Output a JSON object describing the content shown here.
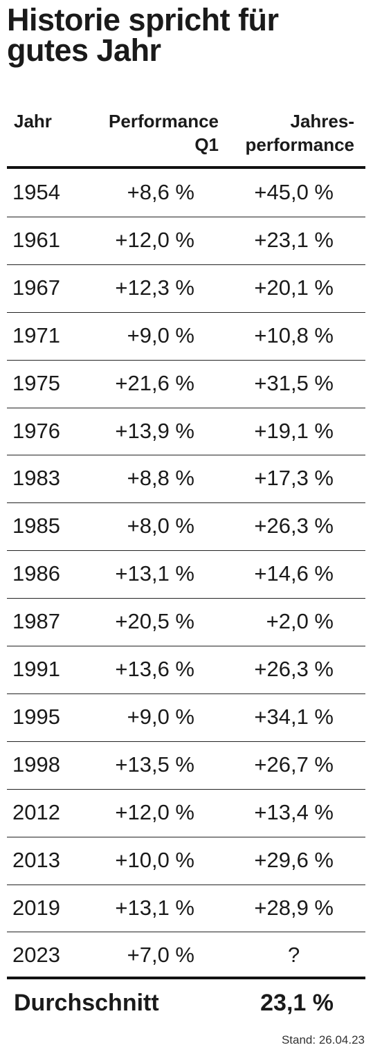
{
  "title": [
    "Historie spricht für",
    "gutes Jahr"
  ],
  "table": {
    "header": [
      [
        "Jahr"
      ],
      [
        "Performance",
        "Q1"
      ],
      [
        "Jahres-",
        "performance"
      ]
    ],
    "rows": [
      [
        "1954",
        "+8,6 %",
        "+45,0 %"
      ],
      [
        "1961",
        "+12,0 %",
        "+23,1 %"
      ],
      [
        "1967",
        "+12,3 %",
        "+20,1 %"
      ],
      [
        "1971",
        "+9,0 %",
        "+10,8 %"
      ],
      [
        "1975",
        "+21,6 %",
        "+31,5 %"
      ],
      [
        "1976",
        "+13,9 %",
        "+19,1 %"
      ],
      [
        "1983",
        "+8,8 %",
        "+17,3 %"
      ],
      [
        "1985",
        "+8,0 %",
        "+26,3 %"
      ],
      [
        "1986",
        "+13,1 %",
        "+14,6 %"
      ],
      [
        "1987",
        "+20,5 %",
        "+2,0 %"
      ],
      [
        "1991",
        "+13,6 %",
        "+26,3 %"
      ],
      [
        "1995",
        "+9,0 %",
        "+34,1 %"
      ],
      [
        "1998",
        "+13,5 %",
        "+26,7 %"
      ],
      [
        "2012",
        "+12,0 %",
        "+13,4 %"
      ],
      [
        "2013",
        "+10,0 %",
        "+29,6 %"
      ],
      [
        "2019",
        "+13,1 %",
        "+28,9 %"
      ],
      [
        "2023",
        "+7,0 %",
        "?"
      ]
    ],
    "footer": [
      "Durchschnitt",
      "23,1 %"
    ]
  },
  "note": "Stand: 26.04.23"
}
